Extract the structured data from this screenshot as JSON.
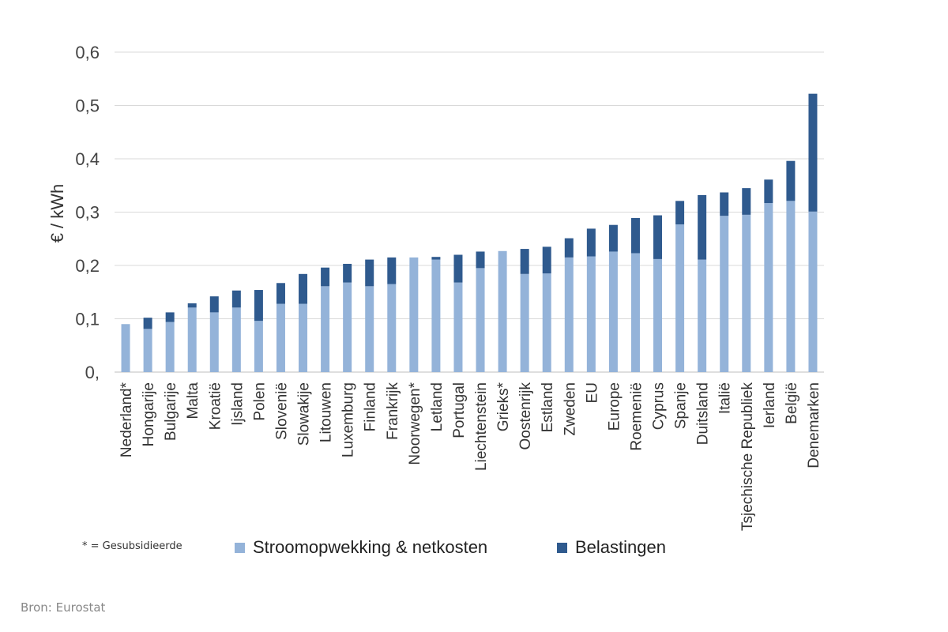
{
  "chart_data": {
    "type": "bar",
    "stacked": true,
    "ylabel": "€ / kWh",
    "ylim": [
      0,
      0.6
    ],
    "yticks": [
      "0,",
      "0,1",
      "0,2",
      "0,3",
      "0,4",
      "0,5",
      "0,6"
    ],
    "grid": true,
    "categories": [
      "Nederland*",
      "Hongarije",
      "Bulgarije",
      "Malta",
      "Kroatië",
      "Ijsland",
      "Polen",
      "Slovenië",
      "Slowakije",
      "Litouwen",
      "Luxemburg",
      "Finland",
      "Frankrijk",
      "Noorwegen*",
      "Letland",
      "Portugal",
      "Liechtenstein",
      "Grieks*",
      "Oostenrijk",
      "Estland",
      "Zweden",
      "EU",
      "Europe",
      "Roemenië",
      "Cyprus",
      "Spanje",
      "Duitsland",
      "Italië",
      "Tsjechische Republiek",
      "Ierland",
      "België",
      "Denemarken"
    ],
    "series": [
      {
        "name": "Stroomopwekking & netkosten",
        "color": "#94b3d9",
        "values": [
          0.09,
          0.081,
          0.094,
          0.121,
          0.112,
          0.121,
          0.096,
          0.128,
          0.128,
          0.161,
          0.168,
          0.161,
          0.165,
          0.215,
          0.211,
          0.168,
          0.195,
          0.227,
          0.184,
          0.185,
          0.215,
          0.217,
          0.226,
          0.223,
          0.212,
          0.277,
          0.211,
          0.293,
          0.295,
          0.317,
          0.321,
          0.301
        ]
      },
      {
        "name": "Belastingen",
        "color": "#2f5a8e",
        "values": [
          0,
          0.021,
          0.018,
          0.008,
          0.03,
          0.032,
          0.058,
          0.039,
          0.056,
          0.035,
          0.035,
          0.05,
          0.05,
          0,
          0.005,
          0.052,
          0.031,
          0,
          0.047,
          0.05,
          0.036,
          0.052,
          0.05,
          0.066,
          0.082,
          0.044,
          0.121,
          0.044,
          0.05,
          0.044,
          0.075,
          0.221
        ]
      }
    ],
    "legend_position": "bottom"
  },
  "footnote": "* = Gesubsidieerde",
  "source": "Bron: Eurostat"
}
